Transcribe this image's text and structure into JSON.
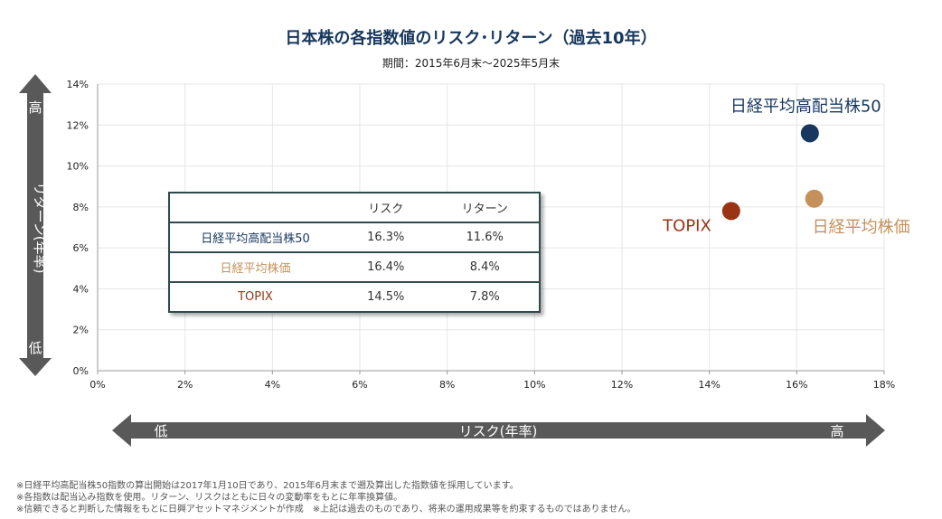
{
  "title": "日本株の各指数値のリスク･リターン（過去10年）",
  "subtitle": "期間：2015年6月末～2025年5月末",
  "y_axis_arrow": {
    "high": "高",
    "label": "リターン(年率)",
    "low": "低"
  },
  "x_axis_arrow": {
    "low": "低",
    "label": "リスク(年率)",
    "high": "高"
  },
  "colors": {
    "navy": "#17375e",
    "tan": "#c4915b",
    "brown": "#9a3314",
    "arrow": "#595959"
  },
  "table": {
    "headers": [
      "",
      "リスク",
      "リターン"
    ],
    "rows": [
      {
        "name": "日経平均高配当株50",
        "risk": "16.3%",
        "return": "11.6%",
        "color": "#17375e"
      },
      {
        "name": "日経平均株価",
        "risk": "16.4%",
        "return": "8.4%",
        "color": "#c4915b"
      },
      {
        "name": "TOPIX",
        "risk": "14.5%",
        "return": "7.8%",
        "color": "#9a3314"
      }
    ]
  },
  "chart_data": {
    "type": "scatter",
    "xlabel": "リスク(年率)",
    "ylabel": "リターン(年率)",
    "xlim": [
      0,
      18
    ],
    "ylim": [
      0,
      14
    ],
    "x_ticks": [
      "0%",
      "2%",
      "4%",
      "6%",
      "8%",
      "10%",
      "12%",
      "14%",
      "16%",
      "18%"
    ],
    "y_ticks": [
      "0%",
      "2%",
      "4%",
      "6%",
      "8%",
      "10%",
      "12%",
      "14%"
    ],
    "grid": true,
    "series": [
      {
        "name": "日経平均高配当株50",
        "x": 16.3,
        "y": 11.6,
        "color": "#17375e"
      },
      {
        "name": "日経平均株価",
        "x": 16.4,
        "y": 8.4,
        "color": "#c4915b"
      },
      {
        "name": "TOPIX",
        "x": 14.5,
        "y": 7.8,
        "color": "#9a3314"
      }
    ]
  },
  "notes": [
    "※日経平均高配当株50指数の算出開始は2017年1月10日であり、2015年6月末まで遡及算出した指数値を採用しています。",
    "※各指数は配当込み指数を使用。リターン、リスクはともに日々の変動率をもとに年率換算値。",
    "※信頼できると判断した情報をもとに日興アセットマネジメントが作成　※上記は過去のものであり、将来の運用成果等を約束するものではありません。"
  ]
}
